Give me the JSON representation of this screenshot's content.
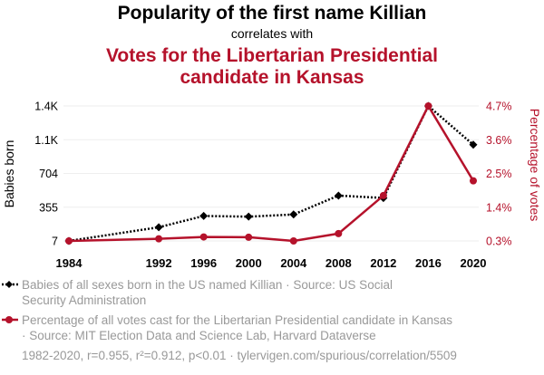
{
  "chart_data": {
    "type": "line",
    "title": "Popularity of the first name Killian",
    "subtitle": "correlates with",
    "title2_lines": [
      "Votes for the Libertarian Presidential",
      "candidate in Kansas"
    ],
    "x": [
      1984,
      1992,
      1996,
      2000,
      2004,
      2008,
      2012,
      2016,
      2020
    ],
    "x_ticks": [
      "1984",
      "1992",
      "1996",
      "2000",
      "2004",
      "2008",
      "2012",
      "2016",
      "2020"
    ],
    "ylabel_left": "Babies born",
    "ylabel_right": "Percentage of votes",
    "y_left_ticks": [
      "1.4K",
      "1.1K",
      "704",
      "355",
      "7"
    ],
    "y_right_ticks": [
      "4.7%",
      "3.6%",
      "2.5%",
      "1.4%",
      "0.3%"
    ],
    "ylim_left": [
      7,
      1400
    ],
    "ylim_right": [
      0.3,
      4.7
    ],
    "series": [
      {
        "name": "Babies of all sexes born in the US named Killian",
        "axis": "left",
        "color": "#000000",
        "style": "dotted",
        "marker": "diamond",
        "values": [
          7,
          148,
          265,
          258,
          280,
          475,
          450,
          1400,
          1000
        ]
      },
      {
        "name": "Percentage of all votes cast for the Libertarian Presidential candidate in Kansas",
        "axis": "right",
        "color": "#b5122b",
        "style": "solid",
        "marker": "circle",
        "values": [
          0.3,
          0.37,
          0.43,
          0.42,
          0.3,
          0.54,
          1.78,
          4.7,
          2.26
        ]
      }
    ],
    "legend": {
      "placement": "bottom",
      "entries": [
        {
          "lines": [
            "Babies of all sexes born in the US named Killian · Source: US Social",
            "Security Administration"
          ]
        },
        {
          "lines": [
            "Percentage of all votes cast for the Libertarian Presidential candidate in Kansas",
            "· Source: MIT Election Data and Science Lab, Harvard Dataverse"
          ]
        }
      ]
    },
    "footer": "1982-2020, r=0.955, r²=0.912, p<0.01 · tylervigen.com/spurious/correlation/5509"
  }
}
